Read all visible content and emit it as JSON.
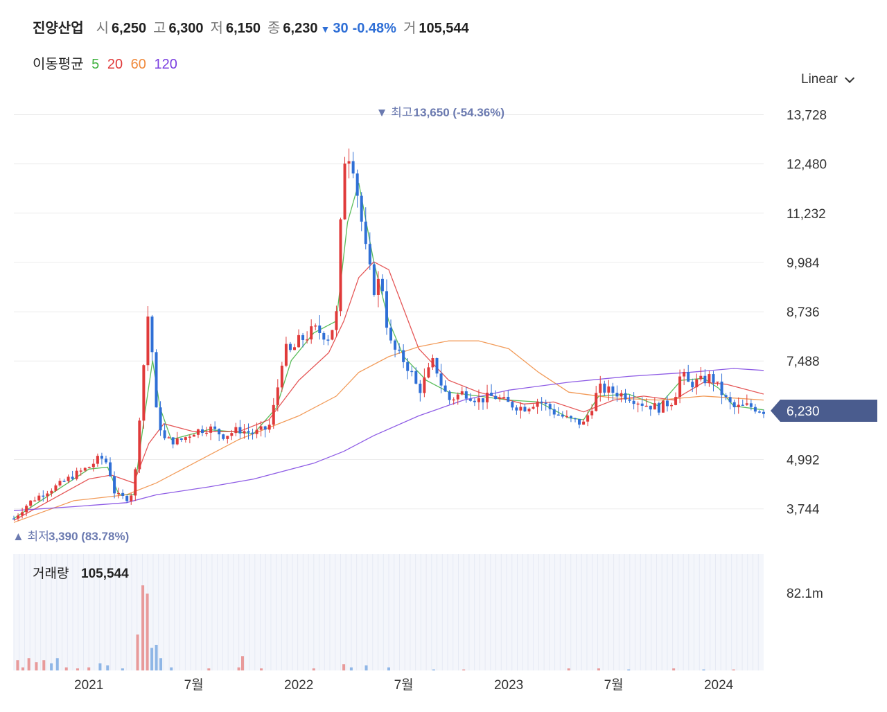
{
  "header": {
    "name": "진양산업",
    "open_label": "시",
    "open": "6,250",
    "high_label": "고",
    "high": "6,300",
    "low_label": "저",
    "low": "6,150",
    "close_label": "종",
    "close": "6,230",
    "change": "30",
    "change_pct": "-0.48%",
    "volume_label": "거",
    "volume": "105,544"
  },
  "moving_average": {
    "label": "이동평균",
    "periods": [
      {
        "period": "5",
        "color": "#3db13d"
      },
      {
        "period": "20",
        "color": "#e03a3a"
      },
      {
        "period": "60",
        "color": "#f08a3c"
      },
      {
        "period": "120",
        "color": "#7a3fe0"
      }
    ]
  },
  "scale_selector": {
    "label": "Linear",
    "icon": "chevron-down-icon"
  },
  "colors": {
    "up": "#e03a3a",
    "down": "#2f6fd6",
    "badge": "#4a5c8e",
    "volume_up": "#e89a9a",
    "volume_down": "#8fb6e6"
  },
  "chart_data": {
    "type": "candlestick",
    "y_ticks": [
      "13,728",
      "12,480",
      "11,232",
      "9,984",
      "8,736",
      "7,488",
      "4,992",
      "3,744"
    ],
    "y_tick_values": [
      13728,
      12480,
      11232,
      9984,
      8736,
      7488,
      4992,
      3744
    ],
    "ylim": [
      3300,
      14000
    ],
    "x_ticks": [
      {
        "label": "2021",
        "t": 0.1
      },
      {
        "label": "7월",
        "t": 0.24
      },
      {
        "label": "2022",
        "t": 0.38
      },
      {
        "label": "7월",
        "t": 0.52
      },
      {
        "label": "2023",
        "t": 0.66
      },
      {
        "label": "7월",
        "t": 0.8
      },
      {
        "label": "2024",
        "t": 0.94
      }
    ],
    "current_price": "6,230",
    "current_value": 6230,
    "max_marker": {
      "prefix": "최고",
      "value": "13,650",
      "pct": "(-54.36%)",
      "y": 13650,
      "t": 0.435
    },
    "min_marker": {
      "prefix": "최저",
      "value": "3,390",
      "pct": "(83.78%)",
      "y": 3390,
      "t": 0.0
    },
    "close_series": [
      [
        0.0,
        3500
      ],
      [
        0.02,
        3900
      ],
      [
        0.04,
        4150
      ],
      [
        0.06,
        4350
      ],
      [
        0.08,
        4600
      ],
      [
        0.1,
        4800
      ],
      [
        0.115,
        5050
      ],
      [
        0.125,
        4900
      ],
      [
        0.135,
        4100
      ],
      [
        0.15,
        4000
      ],
      [
        0.16,
        4200
      ],
      [
        0.17,
        6700
      ],
      [
        0.18,
        8900
      ],
      [
        0.19,
        6200
      ],
      [
        0.2,
        5500
      ],
      [
        0.22,
        5450
      ],
      [
        0.24,
        5700
      ],
      [
        0.26,
        5800
      ],
      [
        0.28,
        5600
      ],
      [
        0.3,
        5750
      ],
      [
        0.32,
        5650
      ],
      [
        0.34,
        5800
      ],
      [
        0.35,
        6600
      ],
      [
        0.36,
        7800
      ],
      [
        0.37,
        7700
      ],
      [
        0.38,
        8000
      ],
      [
        0.39,
        8100
      ],
      [
        0.4,
        8300
      ],
      [
        0.41,
        8200
      ],
      [
        0.42,
        8100
      ],
      [
        0.43,
        8600
      ],
      [
        0.44,
        12600
      ],
      [
        0.45,
        12800
      ],
      [
        0.46,
        11500
      ],
      [
        0.47,
        10200
      ],
      [
        0.48,
        9300
      ],
      [
        0.49,
        9600
      ],
      [
        0.5,
        8000
      ],
      [
        0.51,
        7700
      ],
      [
        0.52,
        7500
      ],
      [
        0.53,
        7200
      ],
      [
        0.54,
        6700
      ],
      [
        0.55,
        7100
      ],
      [
        0.56,
        7500
      ],
      [
        0.57,
        6900
      ],
      [
        0.58,
        6500
      ],
      [
        0.6,
        6700
      ],
      [
        0.62,
        6500
      ],
      [
        0.64,
        6600
      ],
      [
        0.66,
        6400
      ],
      [
        0.68,
        6300
      ],
      [
        0.7,
        6500
      ],
      [
        0.72,
        6200
      ],
      [
        0.74,
        6000
      ],
      [
        0.76,
        5900
      ],
      [
        0.77,
        6300
      ],
      [
        0.78,
        6800
      ],
      [
        0.8,
        6700
      ],
      [
        0.82,
        6600
      ],
      [
        0.84,
        6400
      ],
      [
        0.86,
        6300
      ],
      [
        0.88,
        6500
      ],
      [
        0.89,
        7200
      ],
      [
        0.9,
        6900
      ],
      [
        0.92,
        7000
      ],
      [
        0.93,
        7100
      ],
      [
        0.94,
        6800
      ],
      [
        0.95,
        6500
      ],
      [
        0.96,
        6300
      ],
      [
        0.98,
        6350
      ],
      [
        1.0,
        6230
      ]
    ],
    "ma_series": [
      {
        "name": "5",
        "points": [
          [
            0.0,
            3500
          ],
          [
            0.1,
            4750
          ],
          [
            0.125,
            4800
          ],
          [
            0.14,
            4100
          ],
          [
            0.16,
            4100
          ],
          [
            0.175,
            6200
          ],
          [
            0.185,
            7500
          ],
          [
            0.195,
            6300
          ],
          [
            0.21,
            5500
          ],
          [
            0.26,
            5750
          ],
          [
            0.32,
            5650
          ],
          [
            0.35,
            6300
          ],
          [
            0.37,
            7500
          ],
          [
            0.4,
            8200
          ],
          [
            0.43,
            8500
          ],
          [
            0.445,
            11000
          ],
          [
            0.46,
            12000
          ],
          [
            0.48,
            10000
          ],
          [
            0.5,
            8500
          ],
          [
            0.52,
            7600
          ],
          [
            0.55,
            7000
          ],
          [
            0.58,
            6700
          ],
          [
            0.62,
            6600
          ],
          [
            0.66,
            6500
          ],
          [
            0.7,
            6450
          ],
          [
            0.74,
            6050
          ],
          [
            0.76,
            6000
          ],
          [
            0.78,
            6600
          ],
          [
            0.82,
            6650
          ],
          [
            0.86,
            6350
          ],
          [
            0.89,
            7000
          ],
          [
            0.92,
            7050
          ],
          [
            0.94,
            6800
          ],
          [
            0.96,
            6350
          ],
          [
            1.0,
            6250
          ]
        ]
      },
      {
        "name": "20",
        "points": [
          [
            0.0,
            3450
          ],
          [
            0.1,
            4500
          ],
          [
            0.13,
            4600
          ],
          [
            0.16,
            4400
          ],
          [
            0.18,
            5400
          ],
          [
            0.2,
            5900
          ],
          [
            0.24,
            5700
          ],
          [
            0.3,
            5700
          ],
          [
            0.34,
            6000
          ],
          [
            0.38,
            7000
          ],
          [
            0.42,
            7700
          ],
          [
            0.44,
            8500
          ],
          [
            0.46,
            9600
          ],
          [
            0.48,
            10000
          ],
          [
            0.5,
            9800
          ],
          [
            0.52,
            8800
          ],
          [
            0.54,
            7800
          ],
          [
            0.58,
            7000
          ],
          [
            0.62,
            6700
          ],
          [
            0.68,
            6400
          ],
          [
            0.72,
            6450
          ],
          [
            0.76,
            6200
          ],
          [
            0.8,
            6500
          ],
          [
            0.84,
            6600
          ],
          [
            0.88,
            6500
          ],
          [
            0.92,
            6950
          ],
          [
            0.95,
            6900
          ],
          [
            1.0,
            6650
          ]
        ]
      },
      {
        "name": "60",
        "points": [
          [
            0.0,
            3400
          ],
          [
            0.08,
            3950
          ],
          [
            0.15,
            4100
          ],
          [
            0.19,
            4400
          ],
          [
            0.24,
            4900
          ],
          [
            0.3,
            5500
          ],
          [
            0.38,
            6100
          ],
          [
            0.43,
            6600
          ],
          [
            0.46,
            7200
          ],
          [
            0.5,
            7600
          ],
          [
            0.54,
            7850
          ],
          [
            0.58,
            8000
          ],
          [
            0.62,
            8000
          ],
          [
            0.66,
            7800
          ],
          [
            0.7,
            7200
          ],
          [
            0.74,
            6700
          ],
          [
            0.8,
            6550
          ],
          [
            0.86,
            6500
          ],
          [
            0.92,
            6600
          ],
          [
            0.96,
            6550
          ],
          [
            1.0,
            6500
          ]
        ]
      },
      {
        "name": "120",
        "points": [
          [
            0.0,
            3700
          ],
          [
            0.08,
            3800
          ],
          [
            0.15,
            3900
          ],
          [
            0.19,
            4100
          ],
          [
            0.26,
            4300
          ],
          [
            0.32,
            4500
          ],
          [
            0.4,
            4900
          ],
          [
            0.44,
            5200
          ],
          [
            0.48,
            5600
          ],
          [
            0.54,
            6100
          ],
          [
            0.6,
            6500
          ],
          [
            0.66,
            6750
          ],
          [
            0.74,
            6950
          ],
          [
            0.82,
            7100
          ],
          [
            0.9,
            7200
          ],
          [
            0.96,
            7300
          ],
          [
            1.0,
            7250
          ]
        ]
      }
    ],
    "volume": {
      "label": "거래량",
      "value": "105,544",
      "max_label": "82.1m",
      "bars": [
        [
          0.005,
          0.1,
          "up"
        ],
        [
          0.012,
          0.03,
          "up"
        ],
        [
          0.02,
          0.12,
          "up"
        ],
        [
          0.03,
          0.08,
          "up"
        ],
        [
          0.04,
          0.1,
          "up"
        ],
        [
          0.05,
          0.07,
          "down"
        ],
        [
          0.058,
          0.12,
          "down"
        ],
        [
          0.07,
          0.03,
          "up"
        ],
        [
          0.085,
          0.02,
          "up"
        ],
        [
          0.1,
          0.03,
          "up"
        ],
        [
          0.115,
          0.07,
          "down"
        ],
        [
          0.125,
          0.05,
          "down"
        ],
        [
          0.145,
          0.02,
          "down"
        ],
        [
          0.165,
          0.35,
          "up"
        ],
        [
          0.172,
          0.83,
          "up"
        ],
        [
          0.178,
          0.75,
          "up"
        ],
        [
          0.184,
          0.22,
          "down"
        ],
        [
          0.19,
          0.25,
          "down"
        ],
        [
          0.196,
          0.12,
          "down"
        ],
        [
          0.21,
          0.03,
          "down"
        ],
        [
          0.26,
          0.02,
          "up"
        ],
        [
          0.3,
          0.03,
          "up"
        ],
        [
          0.305,
          0.14,
          "up"
        ],
        [
          0.33,
          0.02,
          "up"
        ],
        [
          0.4,
          0.02,
          "up"
        ],
        [
          0.44,
          0.06,
          "up"
        ],
        [
          0.45,
          0.03,
          "down"
        ],
        [
          0.47,
          0.05,
          "down"
        ],
        [
          0.5,
          0.03,
          "down"
        ],
        [
          0.56,
          0.01,
          "down"
        ],
        [
          0.6,
          0.01,
          "up"
        ],
        [
          0.74,
          0.02,
          "up"
        ],
        [
          0.78,
          0.02,
          "up"
        ],
        [
          0.82,
          0.01,
          "down"
        ],
        [
          0.88,
          0.02,
          "up"
        ],
        [
          0.92,
          0.01,
          "down"
        ],
        [
          0.96,
          0.01,
          "up"
        ]
      ]
    }
  }
}
